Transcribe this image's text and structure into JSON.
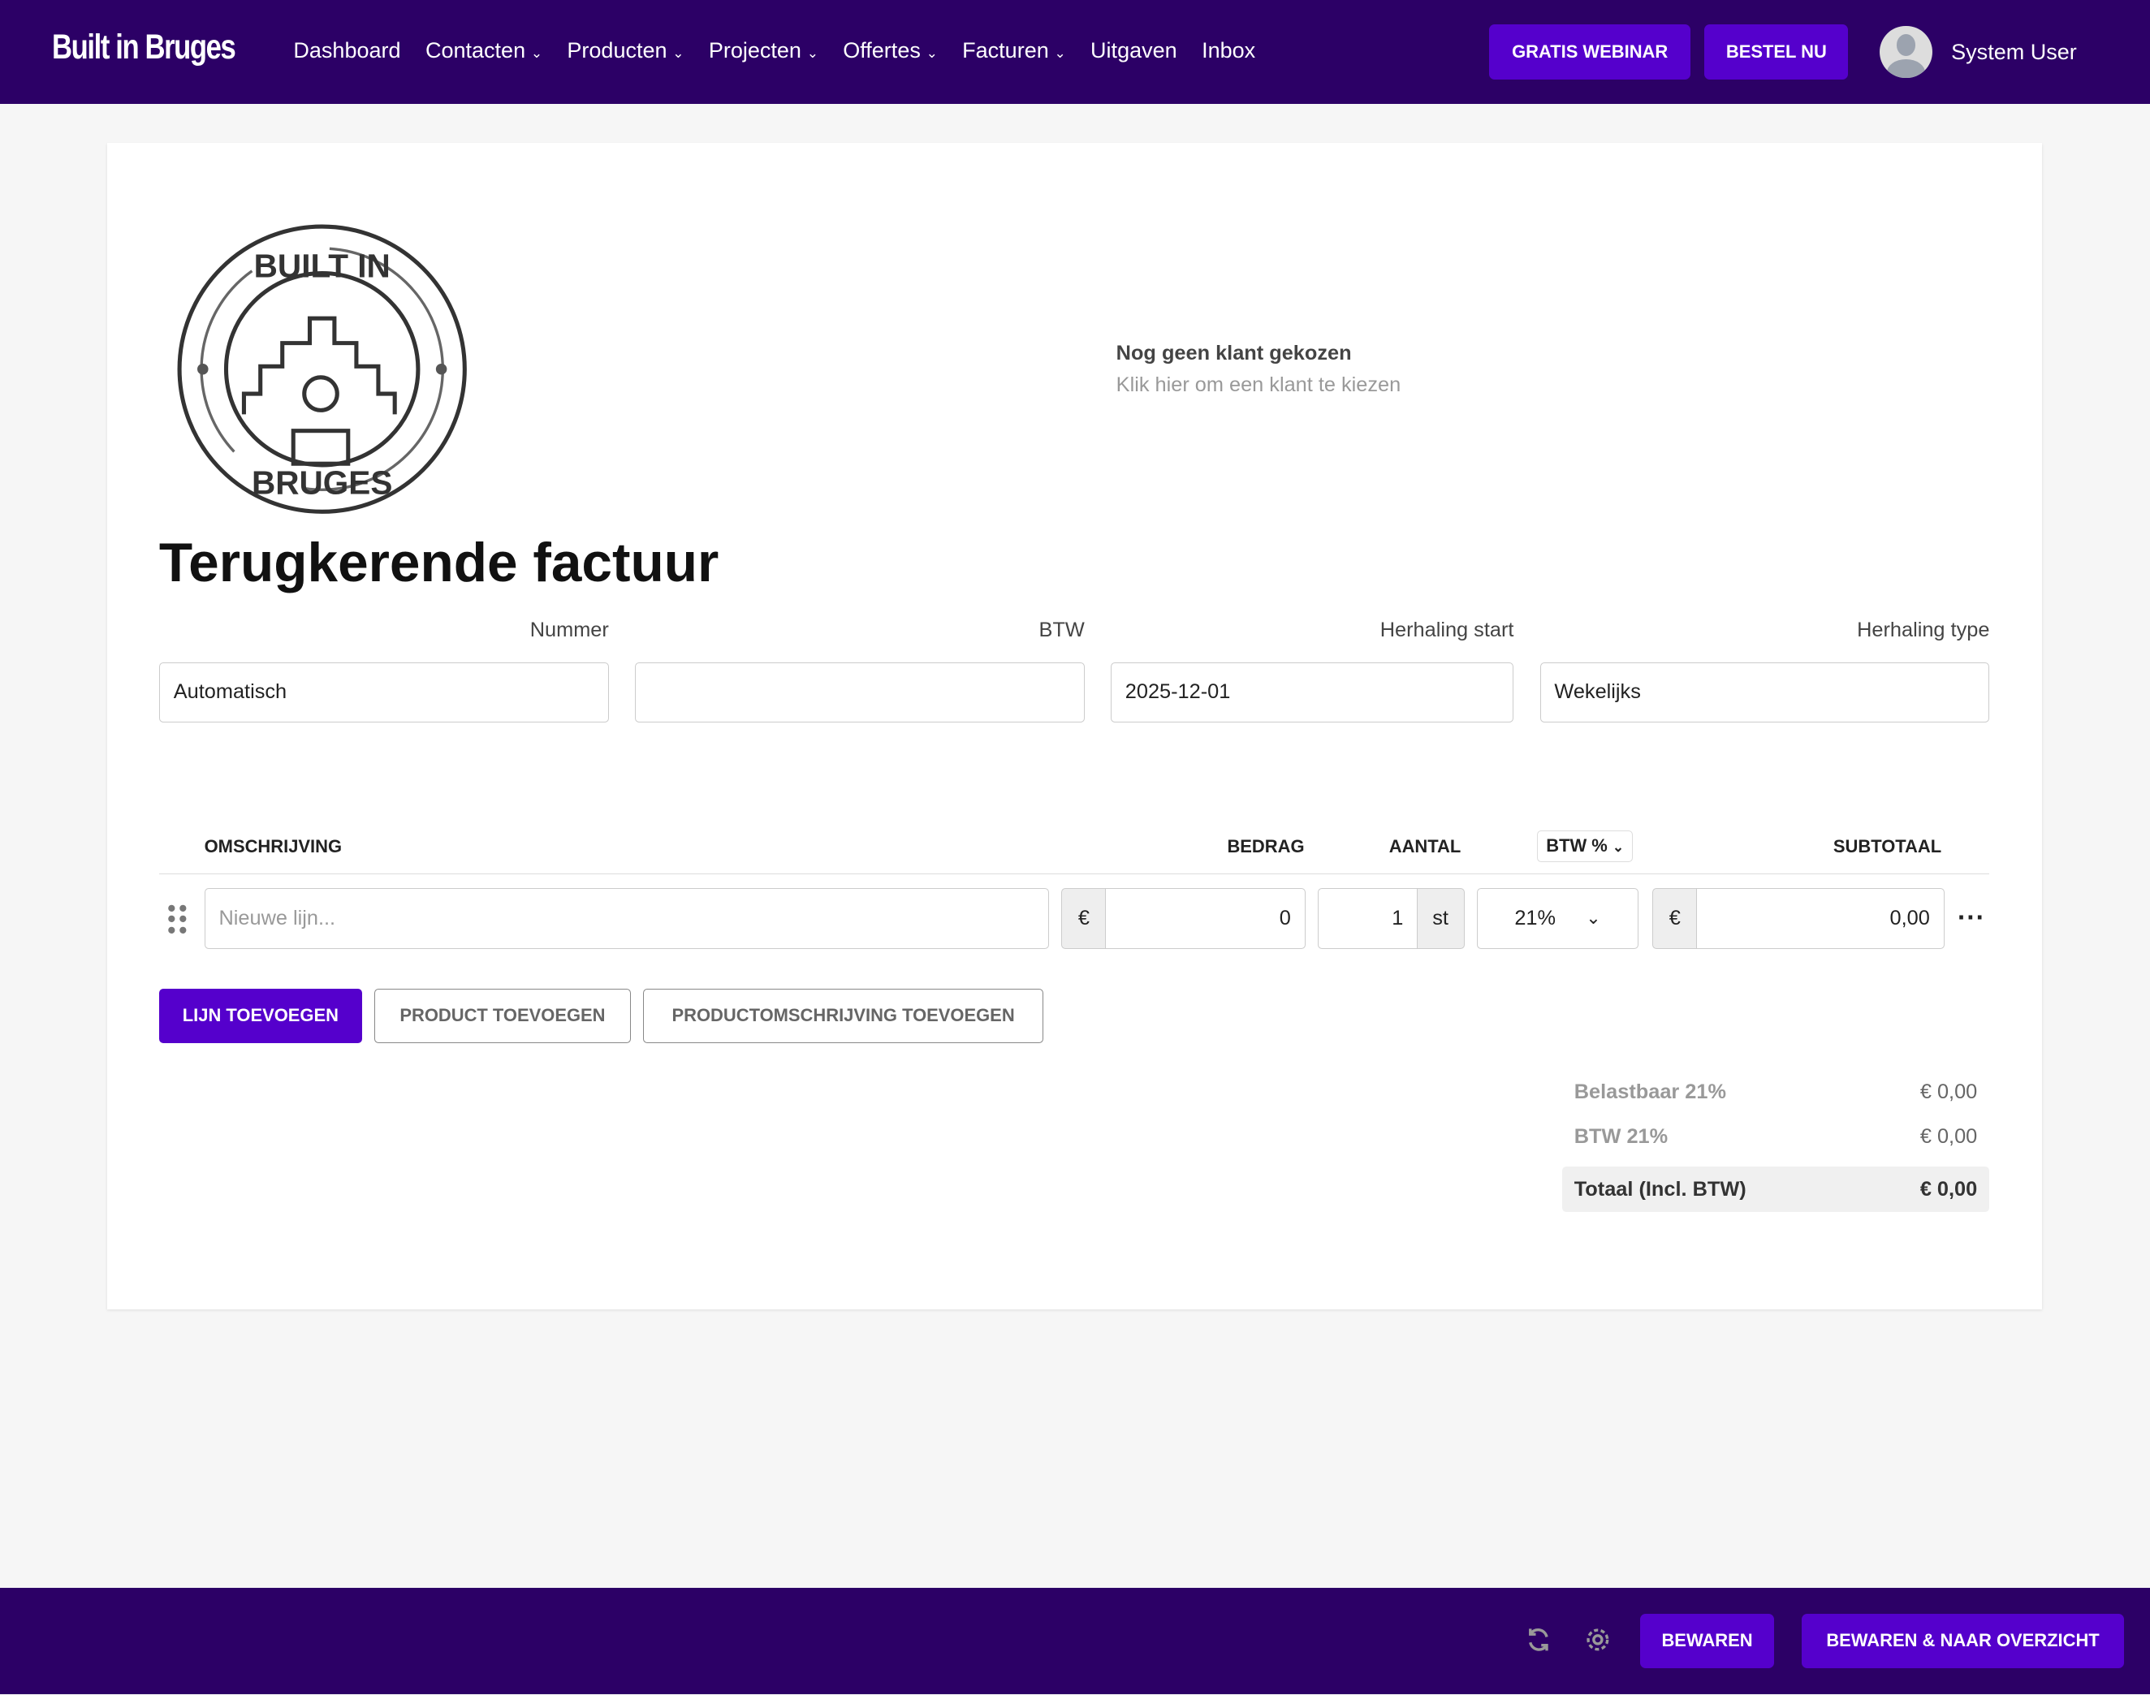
{
  "nav": {
    "brand": "Built in Bruges",
    "items": [
      {
        "label": "Dashboard",
        "dropdown": false
      },
      {
        "label": "Contacten",
        "dropdown": true
      },
      {
        "label": "Producten",
        "dropdown": true
      },
      {
        "label": "Projecten",
        "dropdown": true
      },
      {
        "label": "Offertes",
        "dropdown": true
      },
      {
        "label": "Facturen",
        "dropdown": true
      },
      {
        "label": "Uitgaven",
        "dropdown": false
      },
      {
        "label": "Inbox",
        "dropdown": false
      }
    ],
    "webinar": "GRATIS WEBINAR",
    "order": "BESTEL NU",
    "user": "System User"
  },
  "logo": {
    "top": "BUILT IN",
    "bottom": "BRUGES"
  },
  "client": {
    "title": "Nog geen klant gekozen",
    "hint": "Klik hier om een klant te kiezen"
  },
  "page_title": "Terugkerende factuur",
  "fields": {
    "number_label": "Nummer",
    "number_value": "Automatisch",
    "vat_label": "BTW",
    "vat_value": "",
    "start_label": "Herhaling start",
    "start_value": "2025-12-01",
    "type_label": "Herhaling type",
    "type_value": "Wekelijks"
  },
  "table": {
    "headers": {
      "desc": "OMSCHRIJVING",
      "amount": "BEDRAG",
      "qty": "AANTAL",
      "vat": "BTW %",
      "subtotal": "SUBTOTAAL"
    },
    "row": {
      "placeholder": "Nieuwe lijn...",
      "currency": "€",
      "amount": "0",
      "qty": "1",
      "unit": "st",
      "vat": "21%",
      "subtotal": "0,00"
    }
  },
  "buttons": {
    "add_line": "LIJN TOEVOEGEN",
    "add_product": "PRODUCT TOEVOEGEN",
    "add_product_desc": "PRODUCTOMSCHRIJVING TOEVOEGEN"
  },
  "totals": [
    {
      "label": "Belastbaar 21%",
      "value": "€ 0,00"
    },
    {
      "label": "BTW 21%",
      "value": "€ 0,00"
    },
    {
      "label": "Totaal (Incl. BTW)",
      "value": "€ 0,00"
    }
  ],
  "footer": {
    "save": "BEWAREN",
    "save_overview": "BEWAREN & NAAR OVERZICHT"
  },
  "colors": {
    "nav": "#2c0066",
    "accent": "#5500cc"
  }
}
